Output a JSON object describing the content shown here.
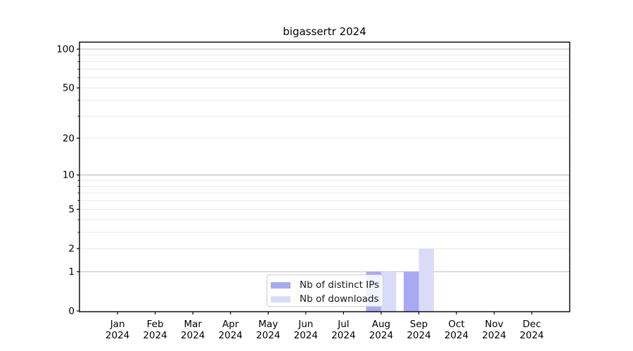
{
  "chart_data": {
    "type": "bar",
    "title": "bigassertr 2024",
    "categories": [
      "Jan\n2024",
      "Feb\n2024",
      "Mar\n2024",
      "Apr\n2024",
      "May\n2024",
      "Jun\n2024",
      "Jul\n2024",
      "Aug\n2024",
      "Sep\n2024",
      "Oct\n2024",
      "Nov\n2024",
      "Dec\n2024"
    ],
    "series": [
      {
        "name": "Nb of distinct IPs",
        "color": "#a8a9f3",
        "values": [
          0,
          0,
          0,
          0,
          0,
          0,
          0,
          1,
          1,
          0,
          0,
          0
        ]
      },
      {
        "name": "Nb of downloads",
        "color": "#d9dbf8",
        "values": [
          0,
          0,
          0,
          0,
          0,
          0,
          0,
          1,
          2,
          0,
          0,
          0
        ]
      }
    ],
    "xlabel": "",
    "ylabel": "",
    "yscale": "log1p",
    "ylim": [
      0,
      100
    ],
    "yticks": [
      0,
      1,
      2,
      5,
      10,
      20,
      50,
      100
    ],
    "yticks_minor": [
      3,
      4,
      6,
      7,
      8,
      9,
      30,
      40,
      60,
      70,
      80,
      90
    ],
    "grid": "both",
    "legend_position": "lower center"
  },
  "legend": {
    "items": [
      {
        "label": "Nb of distinct IPs",
        "color": "#a8a9f3"
      },
      {
        "label": "Nb of downloads",
        "color": "#d9dbf8"
      }
    ]
  },
  "colors": {
    "major_grid": "#b9b9b9",
    "minor_grid": "#e8e8e8",
    "axis": "#000000",
    "tick_label": "#000000"
  }
}
